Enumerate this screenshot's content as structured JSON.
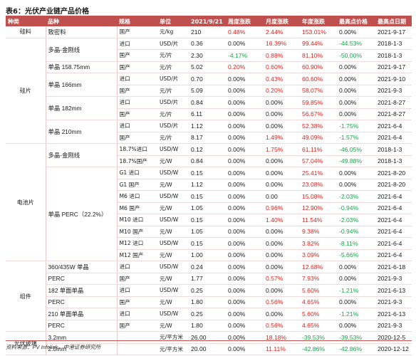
{
  "title": "表6：光伏产业链产品价格",
  "headers": [
    "种类",
    "品种",
    "规格",
    "单位",
    "2021/9/21",
    "周度涨跌",
    "月度涨跌",
    "年度涨跌",
    "最高点价格",
    "最高点日期"
  ],
  "source": "资料来源：PV Infolink，中港证券研究所",
  "colors": {
    "accent": "#c0504d",
    "up": "#e8201b",
    "down": "#1aa64a"
  },
  "rows": [
    {
      "cat": "硅料",
      "cat_span": 1,
      "sub": "致密料",
      "sub_span": 1,
      "spec": "国产",
      "unit": "元/kg",
      "price": "210",
      "wk": "0.48%",
      "wk_c": "red",
      "mo": "2.44%",
      "mo_c": "red",
      "yr": "153.01%",
      "yr_c": "red",
      "hi": "0.00%",
      "hi_c": "",
      "date": "2021-9-17"
    },
    {
      "cat": "硅片",
      "cat_span": 9,
      "sub": "多晶-金刚线",
      "sub_span": 2,
      "spec": "进口",
      "unit": "USD/片",
      "price": "0.36",
      "wk": "0.00%",
      "wk_c": "",
      "mo": "16.39%",
      "mo_c": "red",
      "yr": "99.44%",
      "yr_c": "red",
      "hi": "-44.53%",
      "hi_c": "green",
      "date": "2018-1-3"
    },
    {
      "spec": "国产",
      "unit": "元/片",
      "price": "2.30",
      "wk": "-4.17%",
      "wk_c": "green",
      "mo": "0.88%",
      "mo_c": "red",
      "yr": "81.10%",
      "yr_c": "red",
      "hi": "-50.00%",
      "hi_c": "green",
      "date": "2018-1-3"
    },
    {
      "sub": "单晶 158.75mm",
      "sub_span": 1,
      "spec": "国产",
      "unit": "元/片",
      "price": "5.02",
      "wk": "0.20%",
      "wk_c": "red",
      "mo": "0.60%",
      "mo_c": "red",
      "yr": "60.90%",
      "yr_c": "red",
      "hi": "0.00%",
      "hi_c": "",
      "date": "2021-9-17"
    },
    {
      "sub": "单晶 166mm",
      "sub_span": 2,
      "spec": "进口",
      "unit": "USD/片",
      "price": "0.70",
      "wk": "0.00%",
      "wk_c": "",
      "mo": "0.43%",
      "mo_c": "red",
      "yr": "60.60%",
      "yr_c": "red",
      "hi": "0.00%",
      "hi_c": "",
      "date": "2021-9-10"
    },
    {
      "spec": "国产",
      "unit": "元/片",
      "price": "5.09",
      "wk": "0.00%",
      "wk_c": "",
      "mo": "0.20%",
      "mo_c": "red",
      "yr": "58.07%",
      "yr_c": "red",
      "hi": "0.00%",
      "hi_c": "",
      "date": "2021-9-3"
    },
    {
      "sub": "单晶 182mm",
      "sub_span": 2,
      "spec": "进口",
      "unit": "USD/片",
      "price": "0.84",
      "wk": "0.00%",
      "wk_c": "",
      "mo": "0.00%",
      "mo_c": "",
      "yr": "59.85%",
      "yr_c": "red",
      "hi": "0.00%",
      "hi_c": "",
      "date": "2021-8-27"
    },
    {
      "spec": "国产",
      "unit": "元/片",
      "price": "6.11",
      "wk": "0.00%",
      "wk_c": "",
      "mo": "0.00%",
      "mo_c": "",
      "yr": "56.67%",
      "yr_c": "red",
      "hi": "0.00%",
      "hi_c": "",
      "date": "2021-8-27"
    },
    {
      "sub": "单晶 210mm",
      "sub_span": 2,
      "spec": "进口",
      "unit": "USD/片",
      "price": "1.12",
      "wk": "0.00%",
      "wk_c": "",
      "mo": "0.00%",
      "mo_c": "",
      "yr": "52.38%",
      "yr_c": "red",
      "hi": "-1.75%",
      "hi_c": "green",
      "date": "2021-6-4"
    },
    {
      "spec": "国产",
      "unit": "元/片",
      "price": "8.17",
      "wk": "0.00%",
      "wk_c": "",
      "mo": "1.49%",
      "mo_c": "red",
      "yr": "49.09%",
      "yr_c": "red",
      "hi": "-1.57%",
      "hi_c": "green",
      "date": "2021-6-4"
    },
    {
      "cat": "电池片",
      "cat_span": 10,
      "sub": "多晶-金刚线",
      "sub_span": 2,
      "spec": "18.7%进口",
      "unit": "USD/W",
      "price": "0.12",
      "wk": "0.00%",
      "wk_c": "",
      "mo": "1.75%",
      "mo_c": "red",
      "yr": "61.11%",
      "yr_c": "red",
      "hi": "-46.05%",
      "hi_c": "green",
      "date": "2018-1-3"
    },
    {
      "spec": "18.7%国产",
      "unit": "元/W",
      "price": "0.84",
      "wk": "0.00%",
      "wk_c": "",
      "mo": "0.00%",
      "mo_c": "",
      "yr": "57.04%",
      "yr_c": "red",
      "hi": "-49.88%",
      "hi_c": "green",
      "date": "2018-1-3"
    },
    {
      "sub": "单晶 PERC（22.2%）",
      "sub_span": 8,
      "spec": "G1 进口",
      "unit": "USD/W",
      "price": "0.15",
      "wk": "0.00%",
      "wk_c": "",
      "mo": "0.00%",
      "mo_c": "",
      "yr": "25.41%",
      "yr_c": "red",
      "hi": "0.00%",
      "hi_c": "",
      "date": "2021-8-20"
    },
    {
      "spec": "G1 国产",
      "unit": "元/W",
      "price": "1.12",
      "wk": "0.00%",
      "wk_c": "",
      "mo": "0.00%",
      "mo_c": "",
      "yr": "23.08%",
      "yr_c": "red",
      "hi": "0.00%",
      "hi_c": "",
      "date": "2021-8-20"
    },
    {
      "spec": "M6 进口",
      "unit": "USD/W",
      "price": "0.15",
      "wk": "0.00%",
      "wk_c": "",
      "mo": "0.00",
      "mo_c": "",
      "yr": "15.08%",
      "yr_c": "red",
      "hi": "-2.03%",
      "hi_c": "green",
      "date": "2021-6-4"
    },
    {
      "spec": "M6 国产",
      "unit": "元/W",
      "price": "1.05",
      "wk": "0.00%",
      "wk_c": "",
      "mo": "0.96%",
      "mo_c": "red",
      "yr": "12.90%",
      "yr_c": "red",
      "hi": "-0.94%",
      "hi_c": "green",
      "date": "2021-6-4"
    },
    {
      "spec": "M10 进口",
      "unit": "USD/W",
      "price": "0.15",
      "wk": "0.00%",
      "wk_c": "",
      "mo": "1.40%",
      "mo_c": "red",
      "yr": "11.54%",
      "yr_c": "red",
      "hi": "-2.03%",
      "hi_c": "green",
      "date": "2021-6-4"
    },
    {
      "spec": "M10 国产",
      "unit": "元/W",
      "price": "1.05",
      "wk": "0.00%",
      "wk_c": "",
      "mo": "0.00%",
      "mo_c": "",
      "yr": "9.38%",
      "yr_c": "red",
      "hi": "-0.94%",
      "hi_c": "green",
      "date": "2021-6-4"
    },
    {
      "spec": "M12 进口",
      "unit": "USD/W",
      "price": "0.15",
      "wk": "0.00%",
      "wk_c": "",
      "mo": "0.00%",
      "mo_c": "",
      "yr": "3.82%",
      "yr_c": "red",
      "hi": "-8.11%",
      "hi_c": "green",
      "date": "2021-6-4"
    },
    {
      "spec": "M12 国产",
      "unit": "元/W",
      "price": "1.00",
      "wk": "0.00%",
      "wk_c": "",
      "mo": "0.00%",
      "mo_c": "",
      "yr": "3.09%",
      "yr_c": "red",
      "hi": "-5.66%",
      "hi_c": "green",
      "date": "2021-6-4"
    },
    {
      "cat": "组件",
      "cat_span": 6,
      "sub": "360/435W 单晶",
      "sub_span": 1,
      "spec": "进口",
      "unit": "USD/W",
      "price": "0.24",
      "wk": "0.00%",
      "wk_c": "",
      "mo": "0.00%",
      "mo_c": "",
      "yr": "12.68%",
      "yr_c": "red",
      "hi": "0.00%",
      "hi_c": "",
      "date": "2021-6-18"
    },
    {
      "sub": "PERC",
      "sub_span": 1,
      "spec": "国产",
      "unit": "元/W",
      "price": "1.77",
      "wk": "0.00%",
      "wk_c": "",
      "mo": "0.57%",
      "mo_c": "red",
      "yr": "7.93%",
      "yr_c": "red",
      "hi": "0.00%",
      "hi_c": "",
      "date": "2021-9-3"
    },
    {
      "sub": "182 单面单晶",
      "sub_span": 1,
      "spec": "进口",
      "unit": "USD/W",
      "price": "0.25",
      "wk": "0.00%",
      "wk_c": "",
      "mo": "0.00%",
      "mo_c": "",
      "yr": "5.60%",
      "yr_c": "red",
      "hi": "-1.21%",
      "hi_c": "green",
      "date": "2021-6-13"
    },
    {
      "sub": "PERC",
      "sub_span": 1,
      "spec": "国产",
      "unit": "元/W",
      "price": "1.80",
      "wk": "0.00%",
      "wk_c": "",
      "mo": "0.56%",
      "mo_c": "red",
      "yr": "4.65%",
      "yr_c": "red",
      "hi": "0.00%",
      "hi_c": "",
      "date": "2021-9-3"
    },
    {
      "sub": "210 单面单晶",
      "sub_span": 1,
      "spec": "进口",
      "unit": "USD/W",
      "price": "0.25",
      "wk": "0.00%",
      "wk_c": "",
      "mo": "0.00%",
      "mo_c": "",
      "yr": "5.60%",
      "yr_c": "red",
      "hi": "-1.21%",
      "hi_c": "green",
      "date": "2021-6-13"
    },
    {
      "sub": "PERC",
      "sub_span": 1,
      "spec": "国产",
      "unit": "元/W",
      "price": "1.80",
      "wk": "0.00%",
      "wk_c": "",
      "mo": "0.56%",
      "mo_c": "red",
      "yr": "4.65%",
      "yr_c": "red",
      "hi": "0.00%",
      "hi_c": "",
      "date": "2021-9-3"
    },
    {
      "cat": "光伏玻璃",
      "cat_span": 2,
      "sub": "3.2mm",
      "sub_span": 1,
      "spec": "",
      "unit": "元/平方米",
      "price": "26.00",
      "wk": "0.00%",
      "wk_c": "",
      "mo": "18.18%",
      "mo_c": "red",
      "yr": "-39.53%",
      "yr_c": "green",
      "hi": "-39.53%",
      "hi_c": "green",
      "date": "2020-12-5"
    },
    {
      "sub": "2.0mm",
      "sub_span": 1,
      "spec": "",
      "unit": "元/平方米",
      "price": "20.00",
      "wk": "0.00%",
      "wk_c": "",
      "mo": "11.11%",
      "mo_c": "red",
      "yr": "-42.86%",
      "yr_c": "green",
      "hi": "-42.86%",
      "hi_c": "green",
      "date": "2020-12-12"
    }
  ]
}
